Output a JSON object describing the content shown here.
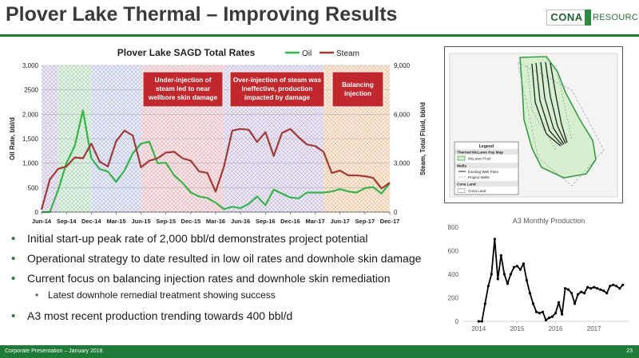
{
  "page": {
    "title": "Plover Lake Thermal – Improving Results",
    "logo_left": "CONA",
    "logo_right": "RESOURCES",
    "footer_left": "Corporate Presentation – January 2018",
    "page_number": "23"
  },
  "bullets": [
    {
      "text": "Initial start-up peak rate of 2,000 bbl/d demonstrates project potential",
      "level": 1
    },
    {
      "text": "Operational strategy to date resulted in low oil rates and downhole skin damage",
      "level": 1
    },
    {
      "text": "Current focus on balancing injection rates and downhole skin remediation",
      "level": 1
    },
    {
      "text": "Latest downhole remedial treatment showing success",
      "level": 2
    },
    {
      "text": "A3 most recent production trending towards 400 bbl/d",
      "level": 1
    }
  ],
  "map": {
    "legend_title": "Legend",
    "legend_section1": "Thermal McLaren Pay Map",
    "legend_pool": "McLaren Pool",
    "legend_section2": "Wells",
    "legend_wells_existing": "Existing Well Pairs",
    "legend_wells_project": "Project Wells",
    "legend_section3": "Cona Land",
    "legend_land": "Cona Land"
  },
  "colors": {
    "brand_green": "#1e7a37",
    "oil": "#36b54a",
    "steam": "#a23a36",
    "callout": "#c0282e"
  },
  "chart_data": [
    {
      "type": "line",
      "title": "Plover Lake SAGD Total Rates",
      "xlabel": "",
      "ylabel": "Oil Rate, bbl/d",
      "y2label": "Steam, Total Fluid, bbl/d",
      "x": [
        "Jun-14",
        "Jul-14",
        "Aug-14",
        "Sep-14",
        "Oct-14",
        "Nov-14",
        "Dec-14",
        "Jan-15",
        "Feb-15",
        "Mar-15",
        "Apr-15",
        "May-15",
        "Jun-15",
        "Jul-15",
        "Aug-15",
        "Sep-15",
        "Oct-15",
        "Nov-15",
        "Dec-15",
        "Jan-16",
        "Feb-16",
        "Mar-16",
        "Apr-16",
        "May-16",
        "Jun-16",
        "Jul-16",
        "Aug-16",
        "Sep-16",
        "Oct-16",
        "Nov-16",
        "Dec-16",
        "Jan-17",
        "Feb-17",
        "Mar-17",
        "Apr-17",
        "May-17",
        "Jun-17",
        "Jul-17",
        "Aug-17",
        "Sep-17",
        "Oct-17",
        "Nov-17",
        "Dec-17"
      ],
      "tick_labels": [
        "Jun-14",
        "Sep-14",
        "Dec-14",
        "Mar-15",
        "Jun-15",
        "Sep-15",
        "Dec-15",
        "Mar-16",
        "Jun-16",
        "Sep-16",
        "Dec-16",
        "Mar-17",
        "Jun-17",
        "Sep-17",
        "Dec-17"
      ],
      "ylim": [
        0,
        3000
      ],
      "y_ticks": [
        "0",
        "500",
        "1,000",
        "1,500",
        "2,000",
        "2500",
        "3,000"
      ],
      "y2lim": [
        0,
        9000
      ],
      "y2_ticks": [
        "0",
        "3,000",
        "6,000",
        "9,000"
      ],
      "legend_position": "top-right",
      "series": [
        {
          "name": "Oil",
          "axis": "left",
          "values": [
            0,
            0,
            450,
            1000,
            1350,
            2080,
            1100,
            880,
            830,
            620,
            850,
            1200,
            1400,
            1440,
            1000,
            1010,
            750,
            600,
            400,
            320,
            290,
            190,
            60,
            110,
            80,
            170,
            320,
            140,
            460,
            380,
            300,
            280,
            400,
            400,
            400,
            420,
            470,
            420,
            400,
            490,
            510,
            380,
            590
          ]
        },
        {
          "name": "Steam",
          "axis": "right",
          "values": [
            150,
            2000,
            2650,
            2800,
            3350,
            3300,
            4200,
            3100,
            2800,
            4350,
            5000,
            4700,
            2750,
            3150,
            3300,
            3650,
            3700,
            3300,
            3150,
            2500,
            2400,
            1250,
            2800,
            5000,
            5100,
            5050,
            4300,
            4900,
            3450,
            4850,
            5100,
            4600,
            4150,
            4050,
            3700,
            2400,
            2550,
            2250,
            2250,
            2200,
            2100,
            1450,
            1800
          ]
        }
      ],
      "annotations": [
        {
          "text": "Under-injection of steam led to near wellbore skin damage",
          "from": "Jun-15",
          "to": "Apr-16"
        },
        {
          "text": "Over-injection of steam was ineffective, production impacted by damage",
          "from": "Apr-16",
          "to": "Apr-17"
        },
        {
          "text": "Balancing injection",
          "from": "Apr-17",
          "to": "Dec-17"
        }
      ]
    },
    {
      "type": "line",
      "title": "A3 Monthly Production",
      "xlabel": "",
      "ylabel": "",
      "ylim": [
        0,
        800
      ],
      "y_ticks": [
        "0",
        "200",
        "400",
        "600",
        "800"
      ],
      "x_ticks": [
        "2014",
        "2015",
        "2016",
        "2017"
      ],
      "series": [
        {
          "name": "",
          "x": [
            2014.0,
            2014.083,
            2014.167,
            2014.25,
            2014.333,
            2014.417,
            2014.5,
            2014.583,
            2014.667,
            2014.75,
            2014.833,
            2014.917,
            2015.0,
            2015.083,
            2015.167,
            2015.25,
            2015.333,
            2015.417,
            2015.5,
            2015.583,
            2015.667,
            2015.75,
            2015.833,
            2015.917,
            2016.0,
            2016.083,
            2016.167,
            2016.25,
            2016.333,
            2016.417,
            2016.5,
            2016.583,
            2016.667,
            2016.75,
            2016.833,
            2016.917,
            2017.0,
            2017.083,
            2017.167,
            2017.25,
            2017.333,
            2017.417,
            2017.5,
            2017.583,
            2017.667,
            2017.75
          ],
          "values": [
            0,
            0,
            150,
            300,
            400,
            700,
            360,
            560,
            400,
            320,
            400,
            460,
            470,
            440,
            490,
            350,
            240,
            150,
            80,
            70,
            80,
            10,
            30,
            40,
            70,
            160,
            60,
            280,
            270,
            240,
            150,
            230,
            250,
            240,
            290,
            280,
            290,
            280,
            270,
            260,
            240,
            300,
            310,
            300,
            280,
            310
          ]
        }
      ]
    }
  ]
}
